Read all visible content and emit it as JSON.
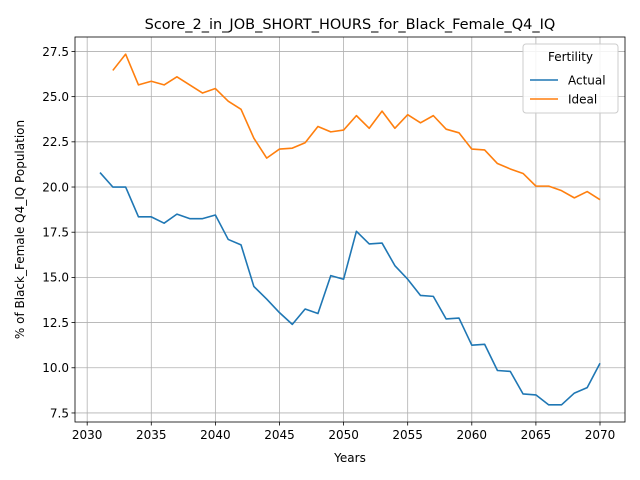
{
  "chart_data": {
    "type": "line",
    "title": "Score_2_in_JOB_SHORT_HOURS_for_Black_Female_Q4_IQ",
    "xlabel": "Years",
    "ylabel": "% of Black_Female Q4_IQ Population",
    "xlim": [
      2029.05,
      2071.95
    ],
    "ylim": [
      7.0,
      28.3
    ],
    "xticks": [
      2030,
      2035,
      2040,
      2045,
      2050,
      2055,
      2060,
      2065,
      2070
    ],
    "yticks": [
      7.5,
      10.0,
      12.5,
      15.0,
      17.5,
      20.0,
      22.5,
      25.0,
      27.5
    ],
    "ytick_labels": [
      "7.5",
      "10.0",
      "12.5",
      "15.0",
      "17.5",
      "20.0",
      "22.5",
      "25.0",
      "27.5"
    ],
    "grid": true,
    "legend": {
      "title": "Fertility",
      "placement": "top-right"
    },
    "series": [
      {
        "name": "Actual",
        "color": "#1f77b4",
        "x": [
          2031,
          2032,
          2033,
          2034,
          2035,
          2036,
          2037,
          2038,
          2039,
          2040,
          2041,
          2042,
          2043,
          2044,
          2045,
          2046,
          2047,
          2048,
          2049,
          2050,
          2051,
          2052,
          2053,
          2054,
          2055,
          2056,
          2057,
          2058,
          2059,
          2060,
          2061,
          2062,
          2063,
          2064,
          2065,
          2066,
          2067,
          2068,
          2069,
          2070
        ],
        "y": [
          20.8,
          20.0,
          20.0,
          18.35,
          18.35,
          18.0,
          18.5,
          18.25,
          18.25,
          18.45,
          17.1,
          16.8,
          14.5,
          13.8,
          13.05,
          12.4,
          13.25,
          13.0,
          15.1,
          14.9,
          17.55,
          16.85,
          16.9,
          15.65,
          14.9,
          14.0,
          13.95,
          12.7,
          12.75,
          11.25,
          11.3,
          9.85,
          9.8,
          8.55,
          8.5,
          7.95,
          7.95,
          8.6,
          8.9,
          10.25
        ]
      },
      {
        "name": "Ideal",
        "color": "#ff7f0e",
        "x": [
          2032,
          2033,
          2034,
          2035,
          2036,
          2037,
          2038,
          2039,
          2040,
          2041,
          2042,
          2043,
          2044,
          2045,
          2046,
          2047,
          2048,
          2049,
          2050,
          2051,
          2052,
          2053,
          2054,
          2055,
          2056,
          2057,
          2058,
          2059,
          2060,
          2061,
          2062,
          2063,
          2064,
          2065,
          2066,
          2067,
          2068,
          2069,
          2070
        ],
        "y": [
          26.45,
          27.35,
          25.65,
          25.85,
          25.65,
          26.1,
          25.65,
          25.2,
          25.45,
          24.75,
          24.3,
          22.7,
          21.6,
          22.1,
          22.15,
          22.45,
          23.35,
          23.05,
          23.15,
          23.95,
          23.25,
          24.2,
          23.25,
          24.0,
          23.55,
          23.95,
          23.2,
          23.0,
          22.1,
          22.05,
          21.3,
          21.0,
          20.75,
          20.05,
          20.05,
          19.8,
          19.4,
          19.75,
          19.3
        ]
      }
    ]
  }
}
